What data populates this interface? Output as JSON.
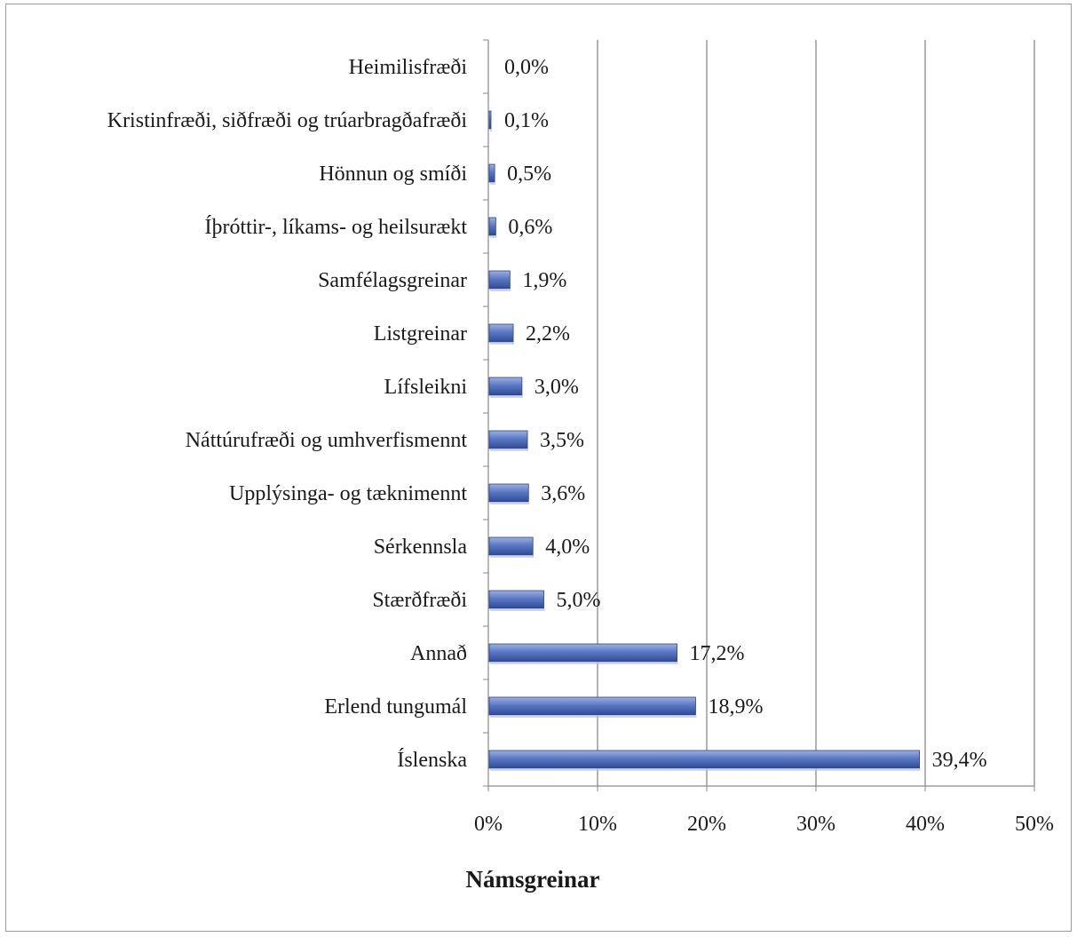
{
  "chart_data": {
    "type": "bar",
    "orientation": "horizontal",
    "categories": [
      "Heimilisfræði",
      "Kristinfræði, siðfræði og trúarbragðafræði",
      "Hönnun og smíði",
      "Íþróttir-, líkams- og heilsurækt",
      "Samfélagsgreinar",
      "Listgreinar",
      "Lífsleikni",
      "Náttúrufræði og umhverfismennt",
      "Upplýsinga- og tæknimennt",
      "Sérkennsla",
      "Stærðfræði",
      "Annað",
      "Erlend tungumál",
      "Íslenska"
    ],
    "values": [
      0.0,
      0.1,
      0.5,
      0.6,
      1.9,
      2.2,
      3.0,
      3.5,
      3.6,
      4.0,
      5.0,
      17.2,
      18.9,
      39.4
    ],
    "value_labels": [
      "0,0%",
      "0,1%",
      "0,5%",
      "0,6%",
      "1,9%",
      "2,2%",
      "3,0%",
      "3,5%",
      "3,6%",
      "4,0%",
      "5,0%",
      "17,2%",
      "18,9%",
      "39,4%"
    ],
    "xlim": [
      0,
      50
    ],
    "xticks": [
      0,
      10,
      20,
      30,
      40,
      50
    ],
    "xtick_labels": [
      "0%",
      "10%",
      "20%",
      "30%",
      "40%",
      "50%"
    ],
    "xlabel": "Námsgreinar",
    "grid": "vertical",
    "bar_color": "#5a78c4"
  }
}
